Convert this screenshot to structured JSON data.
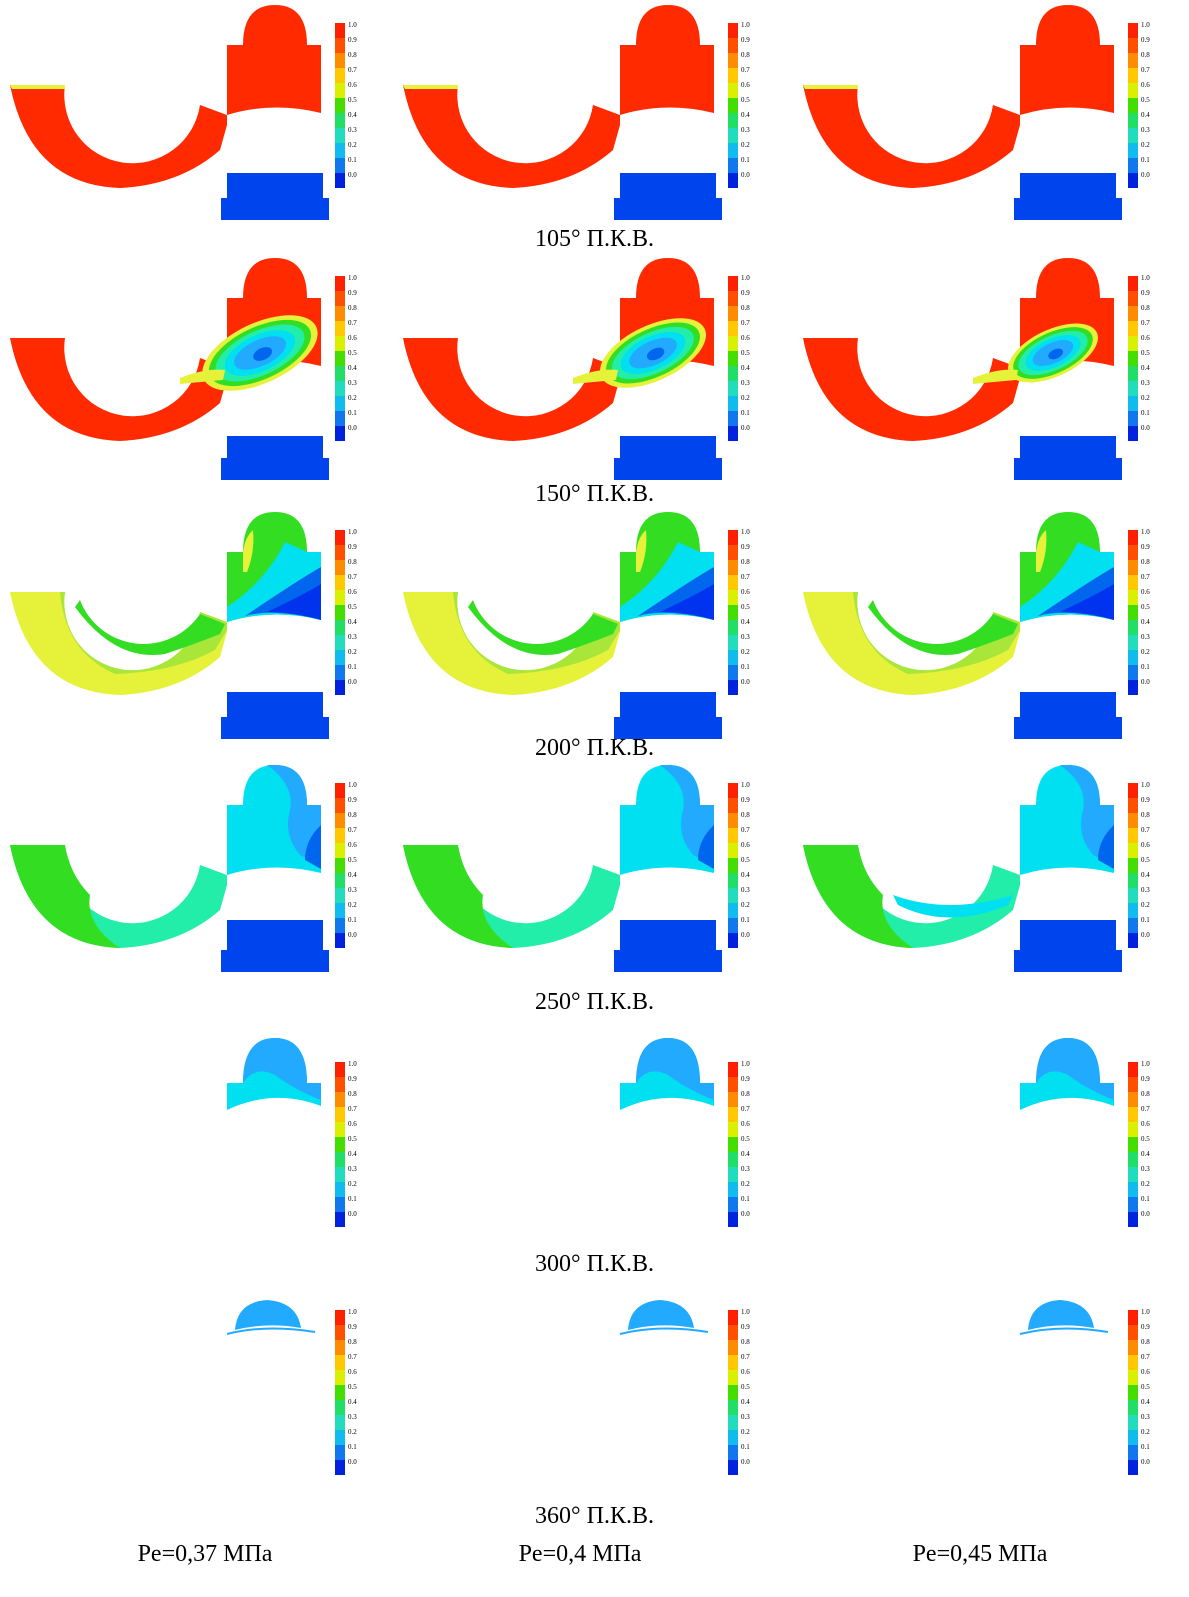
{
  "rows": [
    {
      "id": "r105",
      "caption": "105° П.К.В.",
      "scenario": "early"
    },
    {
      "id": "r150",
      "caption": "150° П.К.В.",
      "scenario": "mix"
    },
    {
      "id": "r200",
      "caption": "200° П.К.В.",
      "scenario": "grad"
    },
    {
      "id": "r250",
      "caption": "250° П.К.В.",
      "scenario": "cool"
    },
    {
      "id": "r300",
      "caption": "300° П.К.В.",
      "scenario": "dome"
    },
    {
      "id": "r360",
      "caption": "360° П.К.В.",
      "scenario": "cap"
    }
  ],
  "columns": [
    {
      "label": "Pe=0,37 МПа"
    },
    {
      "label": "Pe=0,4 МПа"
    },
    {
      "label": "Pe=0,45 МПа"
    }
  ],
  "colorbar": {
    "ticks": [
      "1.0",
      "0.9",
      "0.8",
      "0.7",
      "0.6",
      "0.5",
      "0.4",
      "0.3",
      "0.2",
      "0.1",
      "0.0"
    ],
    "colors": [
      "#ff2000",
      "#ff5000",
      "#ff8c00",
      "#ffc800",
      "#d9f000",
      "#44dd00",
      "#22dd66",
      "#22ddbb",
      "#11bbee",
      "#1177ee",
      "#0022dd"
    ]
  },
  "palette": {
    "red": "#ff2a00",
    "yellow": "#e6f23a",
    "yellow_green": "#a8e63a",
    "green": "#33dd22",
    "teal": "#22eeaa",
    "cyan": "#00e0f0",
    "sky": "#22aaff",
    "blue": "#0066ee",
    "deep_blue": "#0033ee",
    "piston": "#0044ee"
  }
}
